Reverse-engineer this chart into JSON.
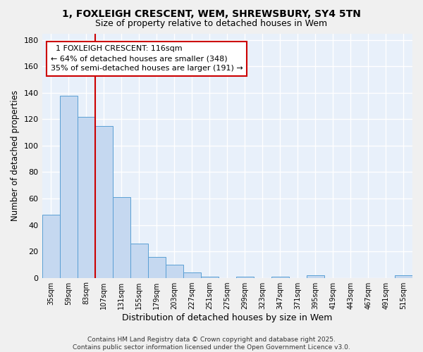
{
  "title_line1": "1, FOXLEIGH CRESCENT, WEM, SHREWSBURY, SY4 5TN",
  "title_line2": "Size of property relative to detached houses in Wem",
  "xlabel": "Distribution of detached houses by size in Wem",
  "ylabel": "Number of detached properties",
  "categories": [
    "35sqm",
    "59sqm",
    "83sqm",
    "107sqm",
    "131sqm",
    "155sqm",
    "179sqm",
    "203sqm",
    "227sqm",
    "251sqm",
    "275sqm",
    "299sqm",
    "323sqm",
    "347sqm",
    "371sqm",
    "395sqm",
    "419sqm",
    "443sqm",
    "467sqm",
    "491sqm",
    "515sqm"
  ],
  "values": [
    48,
    138,
    122,
    115,
    61,
    26,
    16,
    10,
    4,
    1,
    0,
    1,
    0,
    1,
    0,
    2,
    0,
    0,
    0,
    0,
    2
  ],
  "bar_color": "#c5d8f0",
  "bar_edge_color": "#5a9fd4",
  "vline_index": 3,
  "vline_color": "#cc0000",
  "annotation_text_line1": "1 FOXLEIGH CRESCENT: 116sqm",
  "annotation_text_line2": "← 64% of detached houses are smaller (348)",
  "annotation_text_line3": "35% of semi-detached houses are larger (191) →",
  "annotation_box_edge": "#cc0000",
  "annotation_box_bg": "#ffffff",
  "ylim": [
    0,
    185
  ],
  "yticks": [
    0,
    20,
    40,
    60,
    80,
    100,
    120,
    140,
    160,
    180
  ],
  "bg_color": "#e8f0fa",
  "grid_color": "#ffffff",
  "fig_bg_color": "#f0f0f0",
  "footer": "Contains HM Land Registry data © Crown copyright and database right 2025.\nContains public sector information licensed under the Open Government Licence v3.0.",
  "title_fontsize": 10,
  "subtitle_fontsize": 9,
  "xlabel_fontsize": 9,
  "ylabel_fontsize": 8.5,
  "footer_fontsize": 6.5,
  "annot_fontsize": 8
}
